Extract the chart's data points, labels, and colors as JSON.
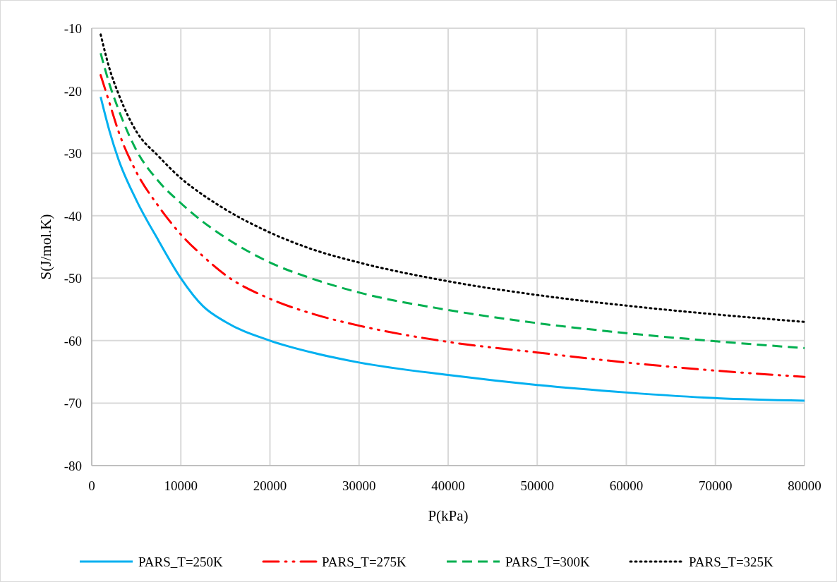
{
  "chart_data": {
    "type": "line",
    "xlabel": "P(kPa)",
    "ylabel": "S(J/mol.K)",
    "x": [
      1000,
      2000,
      3000,
      5000,
      7500,
      10000,
      12500,
      15000,
      20000,
      25000,
      30000,
      40000,
      50000,
      60000,
      70000,
      80000
    ],
    "series": [
      {
        "name": "PARS_T=250K",
        "color": "#00b0f0",
        "line_style": "solid",
        "values": [
          -21,
          -26.5,
          -31,
          -37.5,
          -44,
          -50,
          -54.5,
          -57,
          -60,
          -62,
          -63.5,
          -65.5,
          -67.1,
          -68.3,
          -69.2,
          -69.6
        ]
      },
      {
        "name": "PARS_T=275K",
        "color": "#ff0000",
        "line_style": "dashdotdot",
        "values": [
          -17.5,
          -22,
          -26.5,
          -33,
          -38.5,
          -43,
          -46.5,
          -49.5,
          -53.3,
          -55.8,
          -57.6,
          -60.2,
          -61.9,
          -63.5,
          -64.8,
          -65.8
        ]
      },
      {
        "name": "PARS_T=300K",
        "color": "#00b050",
        "line_style": "dashed",
        "values": [
          -14,
          -19,
          -23,
          -29.5,
          -34.5,
          -38,
          -41,
          -43.5,
          -47.5,
          -50.2,
          -52.3,
          -55.1,
          -57.2,
          -58.8,
          -60.1,
          -61.2
        ]
      },
      {
        "name": "PARS_T=325K",
        "color": "#000000",
        "line_style": "dotted",
        "values": [
          -11,
          -16.5,
          -20.5,
          -26.5,
          -30.5,
          -34,
          -36.7,
          -39,
          -42.7,
          -45.5,
          -47.5,
          -50.5,
          -52.7,
          -54.4,
          -55.8,
          -57
        ]
      }
    ],
    "xlim": [
      0,
      80000
    ],
    "xticks": [
      0,
      10000,
      20000,
      30000,
      40000,
      50000,
      60000,
      70000,
      80000
    ],
    "ylim": [
      -80,
      -10
    ],
    "yticks": [
      -80,
      -70,
      -60,
      -50,
      -40,
      -30,
      -20,
      -10
    ],
    "grid": true,
    "legend": "bottom",
    "marker": "none"
  }
}
